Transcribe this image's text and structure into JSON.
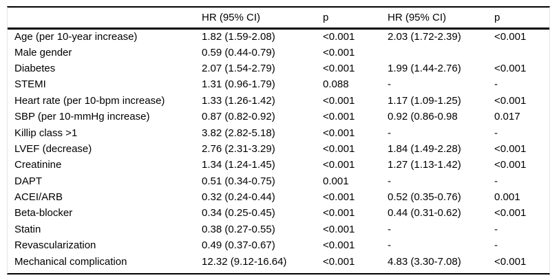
{
  "page": {
    "background_color": "#ffffff",
    "text_color": "#000000",
    "rule_color": "#000000",
    "edge_line_color": "#e3e3e3"
  },
  "table": {
    "columns": [
      "",
      "HR (95% CI)",
      "p",
      "HR (95% CI)",
      "p"
    ],
    "rows": [
      [
        "Age (per 10-year increase)",
        "1.82 (1.59-2.08)",
        "<0.001",
        "2.03 (1.72-2.39)",
        "<0.001"
      ],
      [
        "Male gender",
        "0.59 (0.44-0.79)",
        "<0.001",
        "",
        ""
      ],
      [
        "Diabetes",
        "2.07 (1.54-2.79)",
        "<0.001",
        "1.99 (1.44-2.76)",
        "<0.001"
      ],
      [
        "STEMI",
        "1.31 (0.96-1.79)",
        "0.088",
        "-",
        "-"
      ],
      [
        "Heart rate (per 10-bpm increase)",
        "1.33 (1.26-1.42)",
        "<0.001",
        "1.17 (1.09-1.25)",
        "<0.001"
      ],
      [
        "SBP (per 10-mmHg increase)",
        "0.87 (0.82-0.92)",
        "<0.001",
        "0.92 (0.86-0.98",
        "0.017"
      ],
      [
        "Killip class >1",
        "3.82 (2.82-5.18)",
        "<0.001",
        "-",
        "-"
      ],
      [
        "LVEF (decrease)",
        "2.76 (2.31-3.29)",
        "<0.001",
        "1.84 (1.49-2.28)",
        "<0.001"
      ],
      [
        "Creatinine",
        "1.34 (1.24-1.45)",
        "<0.001",
        "1.27 (1.13-1.42)",
        "<0.001"
      ],
      [
        "DAPT",
        "0.51 (0.34-0.75)",
        "0.001",
        "-",
        "-"
      ],
      [
        "ACEI/ARB",
        "0.32 (0.24-0.44)",
        "<0.001",
        "0.52 (0.35-0.76)",
        "0.001"
      ],
      [
        "Beta-blocker",
        "0.34 (0.25-0.45)",
        "<0.001",
        "0.44 (0.31-0.62)",
        "<0.001"
      ],
      [
        "Statin",
        "0.38 (0.27-0.55)",
        "<0.001",
        "-",
        "-"
      ],
      [
        "Revascularization",
        "0.49 (0.37-0.67)",
        "<0.001",
        "-",
        "-"
      ],
      [
        "Mechanical complication",
        "12.32 (9.12-16.64)",
        "<0.001",
        "4.83 (3.30-7.08)",
        "<0.001"
      ]
    ]
  }
}
